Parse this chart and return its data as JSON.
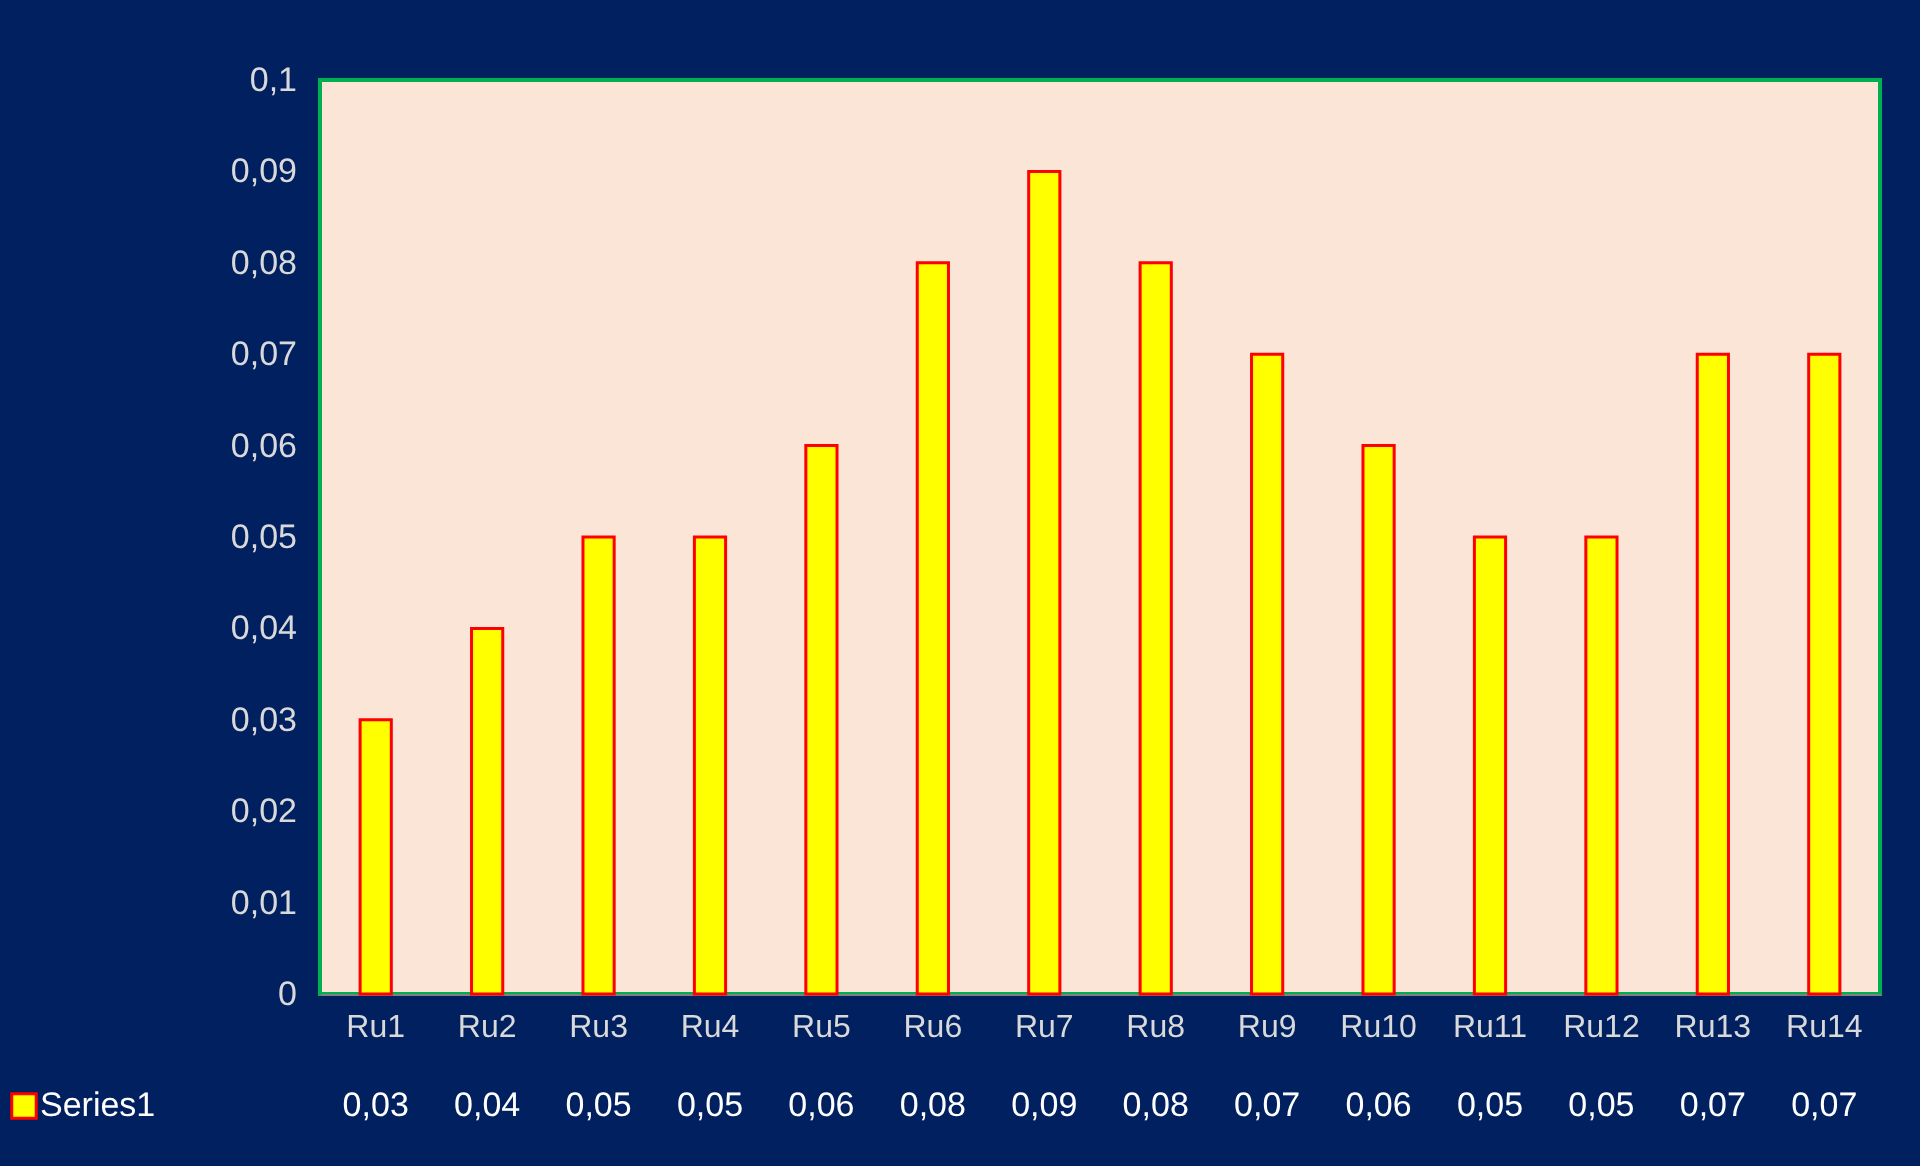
{
  "chart_data": {
    "type": "bar",
    "categories": [
      "Ru1",
      "Ru2",
      "Ru3",
      "Ru4",
      "Ru5",
      "Ru6",
      "Ru7",
      "Ru8",
      "Ru9",
      "Ru10",
      "Ru11",
      "Ru12",
      "Ru13",
      "Ru14"
    ],
    "series": [
      {
        "name": "Series1",
        "color": "#ffff00",
        "values": [
          0.03,
          0.04,
          0.05,
          0.05,
          0.06,
          0.08,
          0.09,
          0.08,
          0.07,
          0.06,
          0.05,
          0.05,
          0.07,
          0.07
        ],
        "value_labels": [
          "0,03",
          "0,04",
          "0,05",
          "0,05",
          "0,06",
          "0,08",
          "0,09",
          "0,08",
          "0,07",
          "0,06",
          "0,05",
          "0,05",
          "0,07",
          "0,07"
        ]
      }
    ],
    "ylim": [
      0,
      0.1
    ],
    "yticks": [
      {
        "value": 0,
        "label": "0"
      },
      {
        "value": 0.01,
        "label": "0,01"
      },
      {
        "value": 0.02,
        "label": "0,02"
      },
      {
        "value": 0.03,
        "label": "0,03"
      },
      {
        "value": 0.04,
        "label": "0,04"
      },
      {
        "value": 0.05,
        "label": "0,05"
      },
      {
        "value": 0.06,
        "label": "0,06"
      },
      {
        "value": 0.07,
        "label": "0,07"
      },
      {
        "value": 0.08,
        "label": "0,08"
      },
      {
        "value": 0.09,
        "label": "0,09"
      },
      {
        "value": 0.1,
        "label": "0,1"
      }
    ],
    "legend": "bottom"
  }
}
